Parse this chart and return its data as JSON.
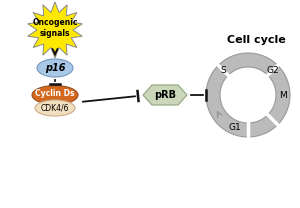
{
  "bg_color": "#ffffff",
  "star_color": "#FFE800",
  "star_edge": "#888888",
  "p16_color": "#A8C8E8",
  "p16_edge": "#7799BB",
  "cyclin_color": "#D2691E",
  "cyclin_edge": "#9B5020",
  "cdk_color": "#F0E0C0",
  "cdk_edge": "#CCAA88",
  "prb_color": "#C8D8B8",
  "prb_edge": "#99AA88",
  "cycle_color": "#BBBBBB",
  "cycle_edge": "#999999",
  "arrow_color": "#111111",
  "oncogenic_text": "Oncogenic\nsignals",
  "p16_text": "p16",
  "cyclin_text": "Cyclin Ds",
  "cdk_text": "CDK4/6",
  "prb_text": "pRB",
  "cell_cycle_title": "Cell cycle",
  "s_label": "S",
  "g2_label": "G2",
  "m_label": "M",
  "g1_label": "G1",
  "title_fontsize": 8,
  "label_fontsize": 7,
  "small_fontsize": 5.5,
  "phase_fontsize": 6.5
}
